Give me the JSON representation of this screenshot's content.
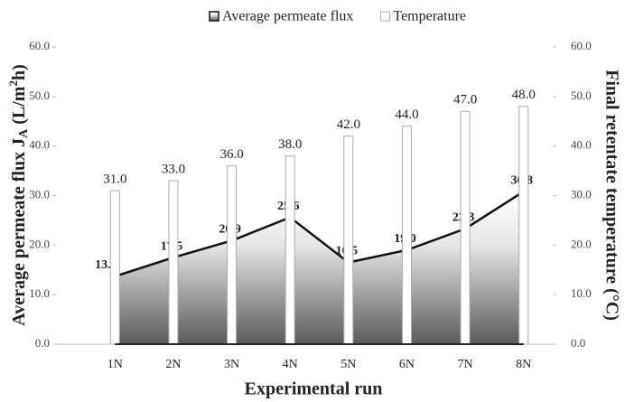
{
  "chart_data": {
    "type": "bar-area",
    "xlabel": "Experimental run",
    "ylabel": [
      "Average permeate flux J",
      "A",
      " (L/m",
      "2",
      "h)"
    ],
    "y2label": "Final retentate temperature (°C)",
    "categories": [
      "1N",
      "2N",
      "3N",
      "4N",
      "5N",
      "6N",
      "7N",
      "8N"
    ],
    "series": [
      {
        "name": "Average permeate flux",
        "kind": "area",
        "color": "#111111",
        "axis": "y",
        "values": [
          13.7,
          17.5,
          20.9,
          25.6,
          16.5,
          19.0,
          23.3,
          30.8
        ],
        "value_labels": [
          "13.7",
          "17.5",
          "20.9",
          "25.6",
          "16.5",
          "19.0",
          "23.3",
          "30.8"
        ]
      },
      {
        "name": "Temperature",
        "kind": "bar",
        "color": "#ffffff",
        "axis": "y2",
        "values": [
          31.0,
          33.0,
          36.0,
          38.0,
          42.0,
          44.0,
          47.0,
          48.0
        ],
        "value_labels": [
          "31.0",
          "33.0",
          "36.0",
          "38.0",
          "42.0",
          "44.0",
          "47.0",
          "48.0"
        ]
      }
    ],
    "ylim": [
      0,
      60
    ],
    "yticks": [
      {
        "value": 0,
        "label": "0.0"
      },
      {
        "value": 10,
        "label": "10.0"
      },
      {
        "value": 20,
        "label": "20.0"
      },
      {
        "value": 30,
        "label": "30.0"
      },
      {
        "value": 40,
        "label": "40.0"
      },
      {
        "value": 50,
        "label": "50.0"
      },
      {
        "value": 60,
        "label": "60.0"
      }
    ],
    "y2lim": [
      0,
      60
    ],
    "y2ticks": [
      {
        "value": 0,
        "label": "0.0"
      },
      {
        "value": 10,
        "label": "10.0"
      },
      {
        "value": 20,
        "label": "20.0"
      },
      {
        "value": 30,
        "label": "30.0"
      },
      {
        "value": 40,
        "label": "40.0"
      },
      {
        "value": 50,
        "label": "50.0"
      },
      {
        "value": 60,
        "label": "60.0"
      }
    ],
    "legend": "top"
  }
}
